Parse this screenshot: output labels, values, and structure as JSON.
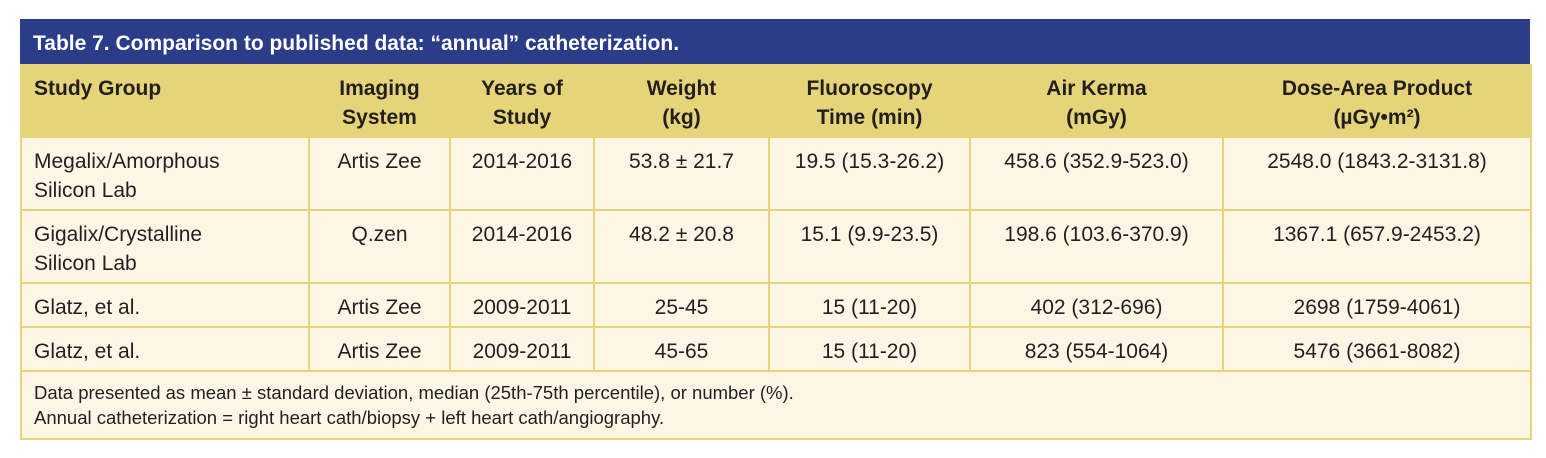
{
  "title": "Table 7. Comparison to published data: “annual” catheterization.",
  "headers": [
    [
      "Study Group",
      ""
    ],
    [
      "Imaging",
      "System"
    ],
    [
      "Years of",
      "Study"
    ],
    [
      "Weight",
      "(kg)"
    ],
    [
      "Fluoroscopy",
      "Time (min)"
    ],
    [
      "Air Kerma",
      "(mGy)"
    ],
    [
      "Dose-Area Product",
      "(µGy•m²)"
    ]
  ],
  "rows": [
    [
      [
        "Megalix/Amorphous",
        "Silicon Lab"
      ],
      "Artis Zee",
      "2014-2016",
      "53.8 ± 21.7",
      "19.5 (15.3-26.2)",
      "458.6 (352.9-523.0)",
      "2548.0 (1843.2-3131.8)"
    ],
    [
      [
        "Gigalix/Crystalline",
        "Silicon Lab"
      ],
      "Q.zen",
      "2014-2016",
      "48.2 ± 20.8",
      "15.1 (9.9-23.5)",
      "198.6 (103.6-370.9)",
      "1367.1 (657.9-2453.2)"
    ],
    [
      [
        "Glatz, et al.",
        ""
      ],
      "Artis Zee",
      "2009-2011",
      "25-45",
      "15 (11-20)",
      "402 (312-696)",
      "2698 (1759-4061)"
    ],
    [
      [
        "Glatz, et al.",
        ""
      ],
      "Artis Zee",
      "2009-2011",
      "45-65",
      "15 (11-20)",
      "823 (554-1064)",
      "5476 (3661-8082)"
    ]
  ],
  "footnotes": [
    "Data presented as mean ± standard deviation, median (25th-75th percentile), or number (%).",
    "Annual catheterization = right heart cath/biopsy + left heart cath/angiography."
  ],
  "colors": {
    "title_bg": "#2b3c88",
    "header_bg": "#e6d47a",
    "cell_bg": "#fdf6e6"
  }
}
